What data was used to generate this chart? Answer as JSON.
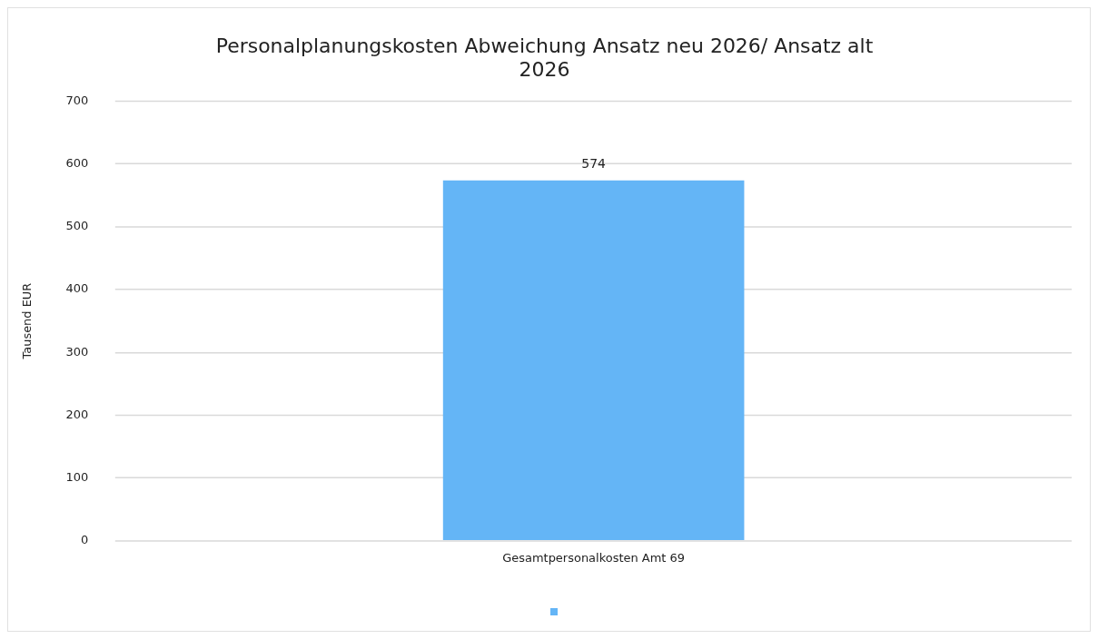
{
  "chart_data": {
    "type": "bar",
    "title": "Personalplanungskosten Abweichung Ansatz neu 2026/ Ansatz alt 2026",
    "ylabel": "Tausend EUR",
    "categories": [
      "Gesamtpersonalkosten Amt 69"
    ],
    "series": [
      {
        "color": "#64b5f6",
        "values": [
          574
        ]
      }
    ],
    "ylim": [
      0,
      700
    ],
    "yticks": [
      0,
      100,
      200,
      300,
      400,
      500,
      600,
      700
    ],
    "grid": "y",
    "data_labels": true
  }
}
